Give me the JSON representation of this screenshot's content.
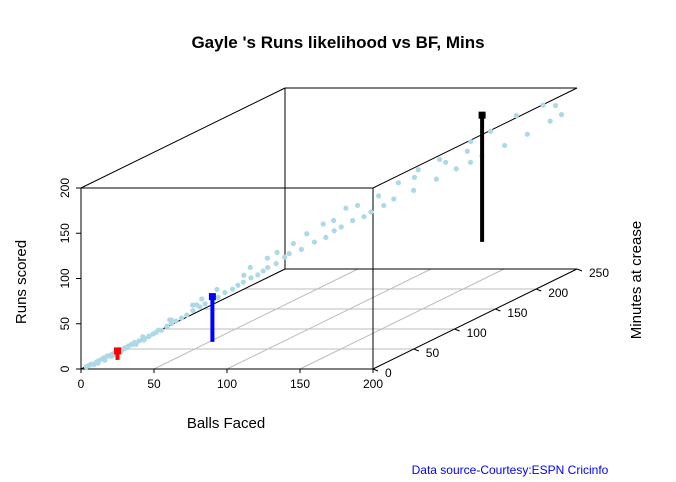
{
  "chart_data": {
    "type": "scatter",
    "projection": "3d",
    "title": "Gayle 's Runs likelihood vs BF, Mins",
    "xlabel": "Balls Faced",
    "ylabel": "Minutes at crease",
    "zlabel": "Runs scored",
    "xlim": [
      0,
      200
    ],
    "ylim": [
      0,
      250
    ],
    "zlim": [
      0,
      200
    ],
    "x_ticks": [
      "0",
      "50",
      "100",
      "150",
      "200"
    ],
    "y_ticks": [
      "0",
      "50",
      "100",
      "150",
      "200",
      "250"
    ],
    "z_ticks": [
      "0",
      "50",
      "100",
      "150",
      "200"
    ],
    "grid": true,
    "point_color": "#ADD8E6",
    "source_note": "Data source-Courtesy:ESPN Cricinfo",
    "source_color": "#0000FF",
    "points": [
      [
        2,
        3,
        1
      ],
      [
        3,
        4,
        2
      ],
      [
        4,
        5,
        3
      ],
      [
        5,
        7,
        2
      ],
      [
        6,
        8,
        4
      ],
      [
        7,
        9,
        5
      ],
      [
        8,
        11,
        6
      ],
      [
        9,
        12,
        7
      ],
      [
        10,
        14,
        8
      ],
      [
        11,
        15,
        8
      ],
      [
        12,
        17,
        9
      ],
      [
        13,
        18,
        10
      ],
      [
        14,
        20,
        11
      ],
      [
        15,
        21,
        12
      ],
      [
        16,
        23,
        12
      ],
      [
        17,
        24,
        13
      ],
      [
        18,
        26,
        14
      ],
      [
        19,
        28,
        15
      ],
      [
        20,
        30,
        16
      ],
      [
        22,
        32,
        17
      ],
      [
        24,
        35,
        18
      ],
      [
        25,
        38,
        19
      ],
      [
        27,
        40,
        21
      ],
      [
        28,
        42,
        22
      ],
      [
        30,
        45,
        23
      ],
      [
        6,
        10,
        2
      ],
      [
        9,
        13,
        4
      ],
      [
        12,
        16,
        7
      ],
      [
        15,
        22,
        9
      ],
      [
        18,
        25,
        13
      ],
      [
        21,
        30,
        14
      ],
      [
        24,
        34,
        17
      ],
      [
        26,
        37,
        20
      ],
      [
        29,
        43,
        24
      ],
      [
        32,
        48,
        26
      ],
      [
        34,
        50,
        28
      ],
      [
        36,
        52,
        30
      ],
      [
        38,
        55,
        32
      ],
      [
        40,
        58,
        34
      ],
      [
        42,
        62,
        37
      ],
      [
        45,
        65,
        40
      ],
      [
        47,
        68,
        42
      ],
      [
        50,
        72,
        44
      ],
      [
        52,
        75,
        46
      ],
      [
        55,
        78,
        50
      ],
      [
        58,
        82,
        52
      ],
      [
        60,
        85,
        55
      ],
      [
        62,
        88,
        57
      ],
      [
        65,
        92,
        60
      ],
      [
        68,
        95,
        62
      ],
      [
        70,
        98,
        65
      ],
      [
        72,
        100,
        68
      ],
      [
        75,
        105,
        70
      ],
      [
        78,
        110,
        75
      ],
      [
        80,
        112,
        78
      ],
      [
        85,
        118,
        80
      ],
      [
        90,
        125,
        85
      ],
      [
        95,
        130,
        88
      ],
      [
        98,
        135,
        93
      ],
      [
        100,
        140,
        95
      ],
      [
        105,
        145,
        100
      ],
      [
        110,
        150,
        102
      ],
      [
        112,
        155,
        105
      ],
      [
        118,
        160,
        110
      ],
      [
        122,
        165,
        115
      ],
      [
        130,
        175,
        120
      ],
      [
        140,
        185,
        128
      ],
      [
        148,
        195,
        135
      ],
      [
        155,
        200,
        140
      ],
      [
        160,
        205,
        145
      ],
      [
        170,
        215,
        152
      ],
      [
        180,
        225,
        160
      ],
      [
        190,
        235,
        170
      ],
      [
        195,
        240,
        175
      ],
      [
        35,
        48,
        33
      ],
      [
        44,
        58,
        45
      ],
      [
        48,
        62,
        50
      ],
      [
        54,
        70,
        57
      ],
      [
        64,
        85,
        66
      ],
      [
        74,
        96,
        80
      ],
      [
        84,
        110,
        90
      ],
      [
        96,
        125,
        105
      ],
      [
        106,
        135,
        118
      ],
      [
        120,
        150,
        125
      ],
      [
        128,
        160,
        135
      ],
      [
        136,
        170,
        145
      ],
      [
        145,
        180,
        152
      ],
      [
        158,
        195,
        165
      ],
      [
        166,
        205,
        172
      ],
      [
        178,
        215,
        185
      ],
      [
        188,
        230,
        190
      ],
      [
        192,
        238,
        186
      ],
      [
        150,
        205,
        150
      ],
      [
        138,
        200,
        140
      ],
      [
        125,
        185,
        130
      ],
      [
        100,
        160,
        110
      ],
      [
        92,
        145,
        100
      ],
      [
        82,
        130,
        92
      ],
      [
        70,
        115,
        78
      ],
      [
        60,
        100,
        68
      ],
      [
        40,
        70,
        40
      ],
      [
        30,
        55,
        30
      ],
      [
        20,
        40,
        18
      ],
      [
        16,
        35,
        12
      ],
      [
        14,
        28,
        10
      ],
      [
        10,
        22,
        6
      ]
    ],
    "markers": [
      {
        "name": "red",
        "color": "#FF0000",
        "x": 25,
        "y": 0,
        "z_from": 10,
        "z_to": 20
      },
      {
        "name": "blue",
        "color": "#0000FF",
        "x": 90,
        "y": 0,
        "z_from": 30,
        "z_to": 80
      },
      {
        "name": "black",
        "color": "#000000",
        "x": 135,
        "y": 250,
        "z_from": 30,
        "z_to": 170
      }
    ]
  }
}
